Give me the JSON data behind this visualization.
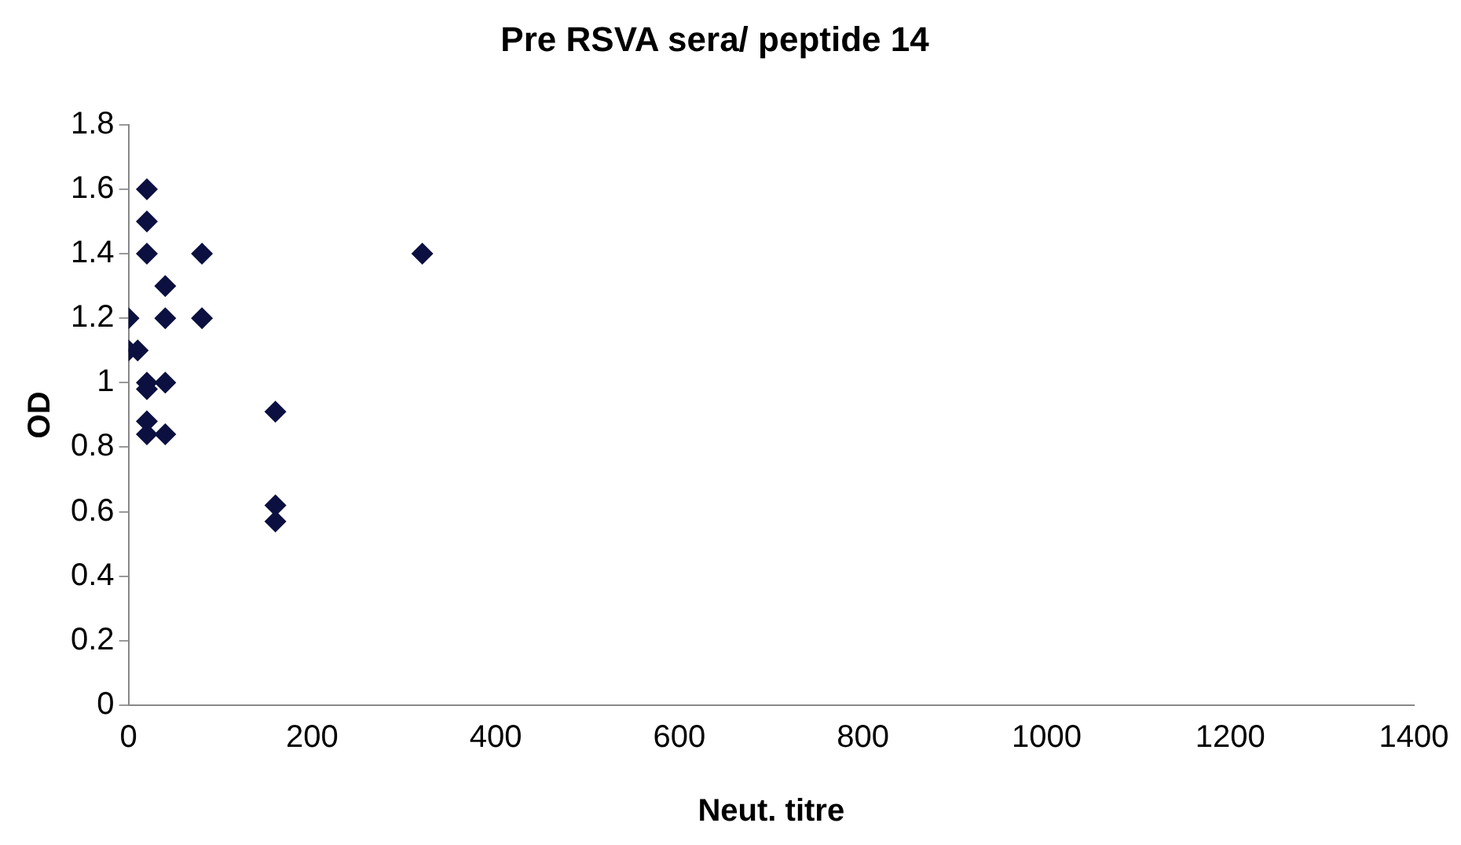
{
  "chart_data": {
    "type": "scatter",
    "title": "Pre RSVA sera/ peptide 14",
    "xlabel": "Neut. titre",
    "ylabel": "OD",
    "x": [
      0,
      0,
      10,
      20,
      20,
      20,
      20,
      20,
      20,
      20,
      40,
      40,
      40,
      40,
      80,
      80,
      160,
      160,
      160,
      320
    ],
    "series": [
      {
        "color": "#0b1040",
        "values": [
          1.2,
          1.1,
          1.1,
          1.6,
          1.5,
          1.4,
          1.0,
          0.98,
          0.88,
          0.84,
          1.3,
          1.2,
          1.0,
          0.84,
          1.4,
          1.2,
          0.91,
          0.62,
          0.57,
          1.4
        ]
      }
    ],
    "xlim": [
      0,
      1400
    ],
    "xticks": [
      0,
      200,
      400,
      600,
      800,
      1000,
      1200,
      1400
    ],
    "ylim": [
      0,
      1.8
    ],
    "yticks": [
      0,
      0.2,
      0.4,
      0.6,
      0.8,
      1,
      1.2,
      1.4,
      1.6,
      1.8
    ],
    "grid": false,
    "legend": false,
    "marker": "diamond"
  }
}
